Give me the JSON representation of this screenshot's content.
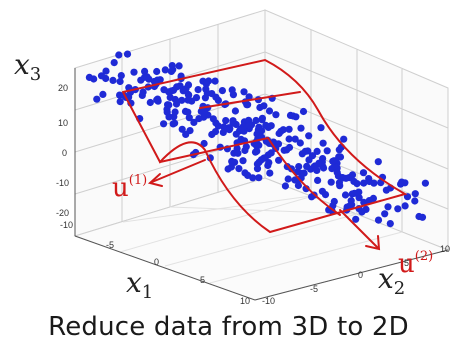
{
  "chart_data": {
    "type": "scatter",
    "projection": "3d",
    "axes": {
      "x1": {
        "label_base": "x",
        "label_sub": "1",
        "ticks": [
          "-10",
          "-5",
          "0",
          "5",
          "10"
        ],
        "range": [
          -10,
          10
        ]
      },
      "x2": {
        "label_base": "x",
        "label_sub": "2",
        "ticks": [
          "-10",
          "-5",
          "0",
          "5",
          "10"
        ],
        "range": [
          -10,
          10
        ]
      },
      "x3": {
        "label_base": "x",
        "label_sub": "3",
        "ticks": [
          "-20",
          "-10",
          "0",
          "10",
          "20"
        ],
        "range": [
          -20,
          20
        ]
      }
    },
    "grid": true,
    "point_color": "#1f2ad6",
    "annotation_color": "#d11a1a",
    "annotations": {
      "u1": {
        "base": "u",
        "sup": "(1)"
      },
      "u2": {
        "base": "u",
        "sup": "(2)"
      }
    }
  },
  "caption": "Reduce data from 3D to 2D"
}
